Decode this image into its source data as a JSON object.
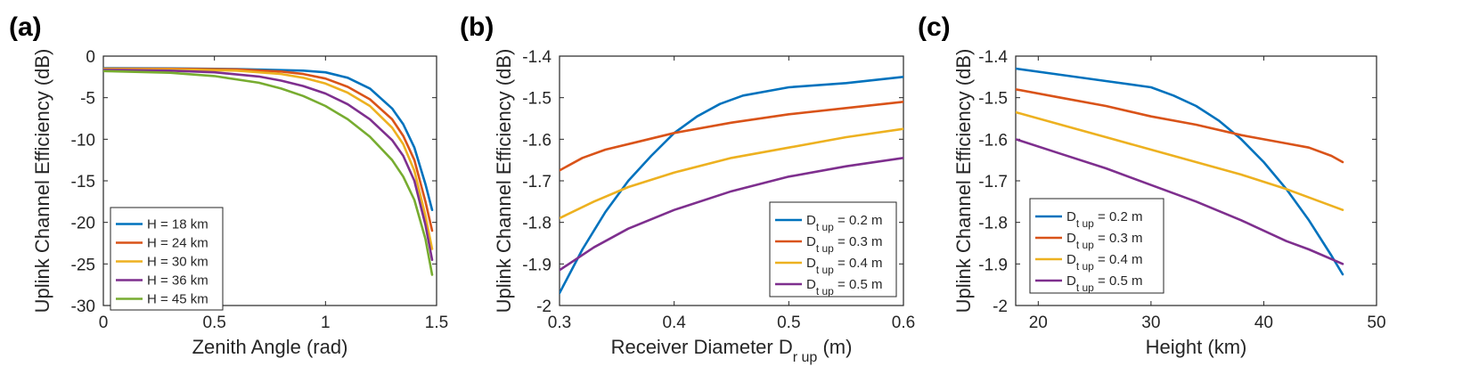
{
  "chart_data": [
    {
      "type": "line",
      "panel_label": "(a)",
      "xlabel": "Zenith Angle (rad)",
      "ylabel": "Uplink Channel Efficiency (dB)",
      "xlim": [
        0,
        1.5
      ],
      "ylim": [
        -30,
        0
      ],
      "xticks": [
        "0",
        "0.5",
        "1",
        "1.5"
      ],
      "yticks": [
        "0",
        "-5",
        "-10",
        "-15",
        "-20",
        "-25",
        "-30"
      ],
      "legend_position": "bottom-left",
      "series": [
        {
          "name": "H = 18 km",
          "color": "#0072BD",
          "x": [
            0,
            0.3,
            0.6,
            0.9,
            1.0,
            1.1,
            1.2,
            1.3,
            1.35,
            1.4,
            1.45,
            1.48
          ],
          "y": [
            -1.45,
            -1.48,
            -1.55,
            -1.75,
            -1.95,
            -2.6,
            -3.9,
            -6.3,
            -8.2,
            -11.0,
            -15.4,
            -18.5
          ]
        },
        {
          "name": "H = 24 km",
          "color": "#D95319",
          "x": [
            0,
            0.3,
            0.6,
            0.8,
            0.9,
            1.0,
            1.1,
            1.2,
            1.3,
            1.35,
            1.4,
            1.45,
            1.48
          ],
          "y": [
            -1.5,
            -1.52,
            -1.6,
            -1.85,
            -2.15,
            -2.7,
            -3.7,
            -5.2,
            -7.6,
            -9.6,
            -12.5,
            -17.5,
            -21.0
          ]
        },
        {
          "name": "H = 30 km",
          "color": "#EDB120",
          "x": [
            0,
            0.3,
            0.6,
            0.8,
            0.9,
            1.0,
            1.1,
            1.2,
            1.3,
            1.35,
            1.4,
            1.45,
            1.48
          ],
          "y": [
            -1.55,
            -1.6,
            -1.75,
            -2.15,
            -2.6,
            -3.3,
            -4.4,
            -6.0,
            -8.6,
            -10.6,
            -13.8,
            -19.2,
            -23.2
          ]
        },
        {
          "name": "H = 36 km",
          "color": "#7E2F8E",
          "x": [
            0,
            0.3,
            0.5,
            0.7,
            0.8,
            0.9,
            1.0,
            1.1,
            1.2,
            1.3,
            1.35,
            1.4,
            1.45,
            1.48
          ],
          "y": [
            -1.65,
            -1.75,
            -1.95,
            -2.45,
            -2.95,
            -3.6,
            -4.5,
            -5.8,
            -7.6,
            -10.1,
            -12.0,
            -15.0,
            -20.3,
            -24.5
          ]
        },
        {
          "name": "H = 45 km",
          "color": "#77AC30",
          "x": [
            0,
            0.3,
            0.5,
            0.7,
            0.8,
            0.9,
            1.0,
            1.1,
            1.2,
            1.3,
            1.35,
            1.4,
            1.45,
            1.48
          ],
          "y": [
            -1.8,
            -2.0,
            -2.4,
            -3.2,
            -3.9,
            -4.8,
            -6.0,
            -7.6,
            -9.7,
            -12.5,
            -14.5,
            -17.3,
            -22.0,
            -26.3
          ]
        }
      ]
    },
    {
      "type": "line",
      "panel_label": "(b)",
      "xlabel": "Receiver Diameter D",
      "xlabel_sub": "r up",
      "xlabel_unit": " (m)",
      "ylabel": "Uplink Channel Efficiency (dB)",
      "xlim": [
        0.3,
        0.6
      ],
      "ylim": [
        -2,
        -1.4
      ],
      "xticks": [
        "0.3",
        "0.4",
        "0.5",
        "0.6"
      ],
      "yticks": [
        "-1.4",
        "-1.5",
        "-1.6",
        "-1.7",
        "-1.8",
        "-1.9",
        "-2"
      ],
      "legend_position": "bottom-right",
      "series": [
        {
          "name": "D",
          "sub": "t up",
          "unit": " = 0.2 m",
          "color": "#0072BD",
          "x": [
            0.3,
            0.32,
            0.34,
            0.36,
            0.38,
            0.4,
            0.42,
            0.44,
            0.46,
            0.5,
            0.55,
            0.6
          ],
          "y": [
            -1.97,
            -1.865,
            -1.775,
            -1.7,
            -1.64,
            -1.585,
            -1.545,
            -1.515,
            -1.495,
            -1.475,
            -1.465,
            -1.45
          ]
        },
        {
          "name": "D",
          "sub": "t up",
          "unit": " = 0.3 m",
          "color": "#D95319",
          "x": [
            0.3,
            0.32,
            0.34,
            0.37,
            0.4,
            0.45,
            0.5,
            0.55,
            0.6
          ],
          "y": [
            -1.675,
            -1.645,
            -1.625,
            -1.605,
            -1.585,
            -1.56,
            -1.54,
            -1.525,
            -1.51
          ]
        },
        {
          "name": "D",
          "sub": "t up",
          "unit": " = 0.4 m",
          "color": "#EDB120",
          "x": [
            0.3,
            0.33,
            0.36,
            0.4,
            0.45,
            0.5,
            0.55,
            0.6
          ],
          "y": [
            -1.79,
            -1.75,
            -1.715,
            -1.68,
            -1.645,
            -1.62,
            -1.595,
            -1.575
          ]
        },
        {
          "name": "D",
          "sub": "t up",
          "unit": " = 0.5 m",
          "color": "#7E2F8E",
          "x": [
            0.3,
            0.33,
            0.36,
            0.4,
            0.45,
            0.5,
            0.55,
            0.6
          ],
          "y": [
            -1.915,
            -1.86,
            -1.815,
            -1.77,
            -1.725,
            -1.69,
            -1.665,
            -1.645
          ]
        }
      ]
    },
    {
      "type": "line",
      "panel_label": "(c)",
      "xlabel": "Height (km)",
      "ylabel": "Uplink Channel Efficiency (dB)",
      "xlim": [
        18,
        50
      ],
      "ylim": [
        -2,
        -1.4
      ],
      "xticks": [
        "20",
        "30",
        "40",
        "50"
      ],
      "yticks": [
        "-1.4",
        "-1.5",
        "-1.6",
        "-1.7",
        "-1.8",
        "-1.9",
        "-2"
      ],
      "legend_position": "bottom-left",
      "series": [
        {
          "name": "D",
          "sub": "t up",
          "unit": " = 0.2 m",
          "color": "#0072BD",
          "x": [
            18,
            22,
            26,
            30,
            32,
            34,
            36,
            38,
            40,
            42,
            44,
            46,
            47
          ],
          "y": [
            -1.43,
            -1.445,
            -1.46,
            -1.475,
            -1.495,
            -1.52,
            -1.555,
            -1.6,
            -1.655,
            -1.72,
            -1.795,
            -1.88,
            -1.925
          ]
        },
        {
          "name": "D",
          "sub": "t up",
          "unit": " = 0.3 m",
          "color": "#D95319",
          "x": [
            18,
            22,
            26,
            30,
            34,
            38,
            42,
            44,
            46,
            47
          ],
          "y": [
            -1.48,
            -1.5,
            -1.52,
            -1.545,
            -1.565,
            -1.59,
            -1.61,
            -1.62,
            -1.64,
            -1.655
          ]
        },
        {
          "name": "D",
          "sub": "t up",
          "unit": " = 0.4 m",
          "color": "#EDB120",
          "x": [
            18,
            22,
            26,
            30,
            34,
            38,
            42,
            47
          ],
          "y": [
            -1.535,
            -1.565,
            -1.595,
            -1.625,
            -1.655,
            -1.685,
            -1.72,
            -1.77
          ]
        },
        {
          "name": "D",
          "sub": "t up",
          "unit": " = 0.5 m",
          "color": "#7E2F8E",
          "x": [
            18,
            22,
            26,
            30,
            34,
            38,
            42,
            44,
            47
          ],
          "y": [
            -1.6,
            -1.635,
            -1.67,
            -1.71,
            -1.75,
            -1.795,
            -1.845,
            -1.865,
            -1.9
          ]
        }
      ]
    }
  ]
}
